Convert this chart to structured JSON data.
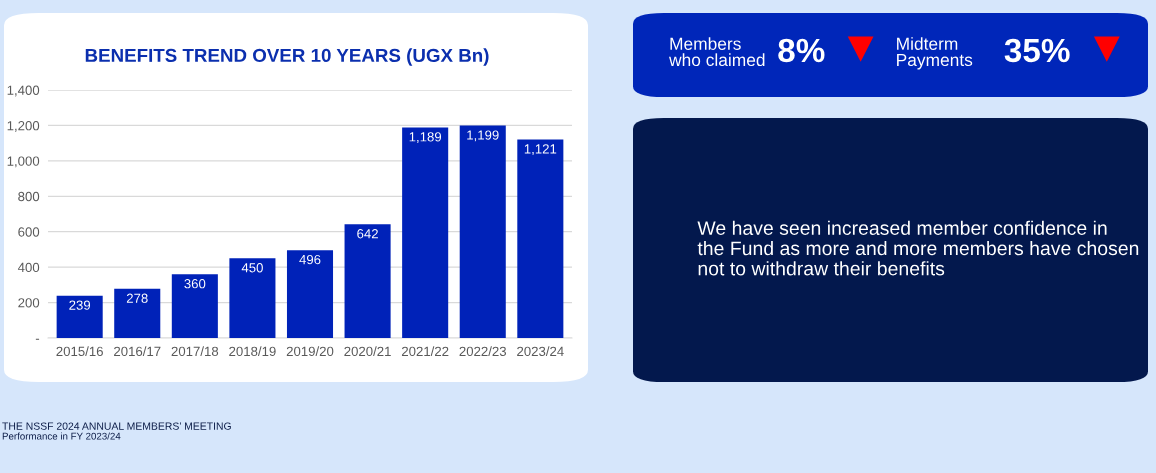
{
  "chart_data": [
    {
      "type": "bar",
      "title": "BENEFITS TREND OVER 10 YEARS (UGX Bn)",
      "categories": [
        "2015/16",
        "2016/17",
        "2017/18",
        "2018/19",
        "2019/20",
        "2020/21",
        "2021/22",
        "2022/23",
        "2023/24"
      ],
      "values": [
        239,
        278,
        360,
        450,
        496,
        642,
        1189,
        1199,
        1121
      ],
      "color": "#0022b8",
      "data_labels": true,
      "value_labels": [
        "239",
        "278",
        "360",
        "450",
        "496",
        "642",
        "1,189",
        "1,199",
        "1,121"
      ],
      "ylim": [
        0,
        1400
      ],
      "yticks": [
        {
          "value": 0,
          "label": "-"
        },
        200,
        400,
        600,
        800,
        {
          "value": 1000,
          "label": "1,000"
        },
        {
          "value": 1200,
          "label": "1,200"
        },
        {
          "value": 1400,
          "label": "1,400"
        }
      ],
      "grid": "y",
      "annotations": [
        "THE NSSF 2024 ANNUAL MEMBERS’ MEETING",
        "Performance in FY 2023/24"
      ]
    },
    {
      "type": "other",
      "color": "#0026b9",
      "annotations": [
        "Members\nwho claimed",
        "8%",
        "Midterm\nPayments",
        "35%"
      ]
    },
    {
      "type": "other",
      "color": "#03184d",
      "annotations": [
        "We have seen increased member confidence in\nthe Fund as more and more members have chosen\nnot to withdraw their benefits"
      ]
    }
  ]
}
